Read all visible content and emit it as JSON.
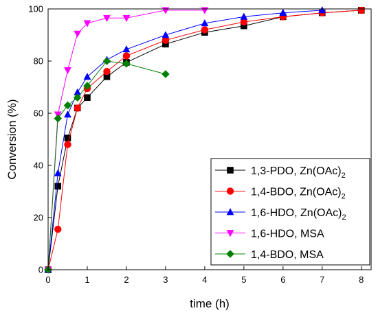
{
  "chart_data": {
    "type": "line",
    "xlabel": "time (h)",
    "ylabel": "Conversion (%)",
    "xlim": [
      0,
      8.25
    ],
    "ylim": [
      0,
      100
    ],
    "xticks": [
      0,
      1,
      2,
      3,
      4,
      5,
      6,
      7,
      8
    ],
    "yticks": [
      0,
      20,
      40,
      60,
      80,
      100
    ],
    "grid": false,
    "legend_position": "bottom-right",
    "series": [
      {
        "name": "1,3-PDO, Zn(OAc)",
        "name_sub": "2",
        "color": "#000000",
        "marker": "square",
        "x": [
          0,
          0.25,
          0.5,
          0.75,
          1,
          1.5,
          2,
          3,
          4,
          5,
          6,
          7,
          8
        ],
        "y": [
          0,
          32,
          50.5,
          62,
          66,
          74,
          79.5,
          86.5,
          91,
          93.5,
          97,
          98.5,
          99.5
        ]
      },
      {
        "name": "1,4-BDO, Zn(OAc)",
        "name_sub": "2",
        "color": "#ff0000",
        "marker": "circle",
        "x": [
          0,
          0.25,
          0.5,
          0.75,
          1,
          1.5,
          2,
          3,
          4,
          5,
          6,
          7,
          8
        ],
        "y": [
          0,
          15.5,
          48,
          62,
          69.5,
          76,
          82,
          88,
          92,
          95,
          97,
          98.5,
          99.5
        ]
      },
      {
        "name": "1,6-HDO, Zn(OAc)",
        "name_sub": "2",
        "color": "#0000ff",
        "marker": "triangle-up",
        "x": [
          0,
          0.25,
          0.5,
          0.75,
          1,
          1.5,
          2,
          3,
          4,
          5,
          6,
          7
        ],
        "y": [
          0,
          37,
          59.5,
          68,
          74,
          80.5,
          84.5,
          90,
          94.5,
          97,
          98.5,
          99.5
        ]
      },
      {
        "name": "1,6-HDO, MSA",
        "name_sub": "",
        "color": "#ff00ff",
        "marker": "triangle-down",
        "x": [
          0,
          0.25,
          0.5,
          0.75,
          1,
          1.5,
          2,
          3,
          4
        ],
        "y": [
          0,
          59.5,
          76.5,
          90.5,
          94.5,
          96.5,
          96.5,
          99.5,
          99.5
        ]
      },
      {
        "name": "1,4-BDO, MSA",
        "name_sub": "",
        "color": "#008000",
        "marker": "diamond",
        "x": [
          0,
          0.25,
          0.5,
          0.75,
          1,
          1.5,
          2,
          3
        ],
        "y": [
          0,
          58,
          63,
          66,
          70.5,
          80,
          79,
          75
        ]
      }
    ]
  }
}
